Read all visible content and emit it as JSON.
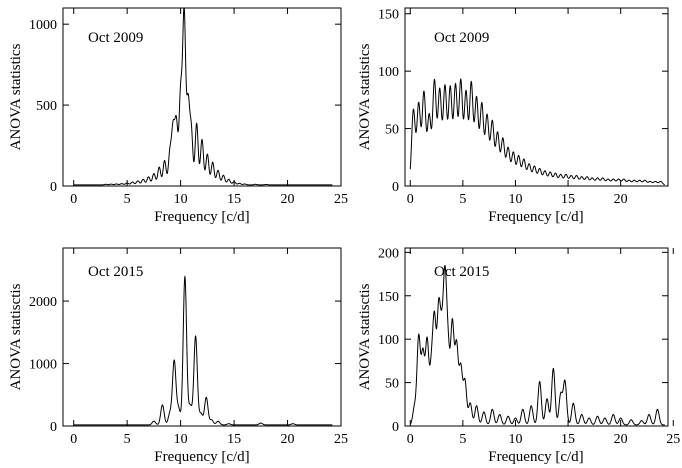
{
  "chart_data": [
    {
      "type": "line",
      "panel_label": "Oct 2009",
      "xlabel": "Frequency [c/d]",
      "ylabel": "ANOVA statistics",
      "xlim": [
        -1,
        25
      ],
      "ylim": [
        0,
        1100
      ],
      "x_ticks": [
        0,
        5,
        10,
        15,
        20,
        25
      ],
      "y_ticks": [
        0,
        500,
        1000
      ],
      "peaks": [
        [
          3,
          4
        ],
        [
          3.5,
          5
        ],
        [
          4,
          6
        ],
        [
          4.5,
          8
        ],
        [
          5,
          12
        ],
        [
          5.5,
          18
        ],
        [
          6,
          25
        ],
        [
          6.5,
          35
        ],
        [
          7,
          50
        ],
        [
          7.5,
          70
        ],
        [
          8,
          110
        ],
        [
          8.5,
          150
        ],
        [
          9,
          200
        ],
        [
          9.3,
          340
        ],
        [
          9.6,
          380
        ],
        [
          10,
          560
        ],
        [
          10.33,
          1050
        ],
        [
          10.7,
          500
        ],
        [
          11,
          330
        ],
        [
          11.5,
          380
        ],
        [
          12,
          280
        ],
        [
          12.5,
          190
        ],
        [
          13,
          140
        ],
        [
          13.5,
          90
        ],
        [
          14,
          60
        ],
        [
          14.5,
          35
        ],
        [
          15,
          20
        ],
        [
          15.5,
          10
        ],
        [
          16,
          6
        ],
        [
          17,
          4
        ],
        [
          18,
          3
        ]
      ]
    },
    {
      "type": "line",
      "panel_label": "Oct 2009",
      "xlabel": "Frequency [c/d]",
      "ylabel": "ANOVA statistics",
      "xlim": [
        -0.5,
        24.5
      ],
      "ylim": [
        0,
        155
      ],
      "x_ticks": [
        0,
        5,
        10,
        15,
        20
      ],
      "y_ticks": [
        0,
        50,
        100,
        150
      ],
      "peaks": [
        [
          0.3,
          65
        ],
        [
          0.8,
          70
        ],
        [
          1.3,
          80
        ],
        [
          1.8,
          60
        ],
        [
          2.3,
          90
        ],
        [
          2.8,
          82
        ],
        [
          3.3,
          85
        ],
        [
          3.8,
          84
        ],
        [
          4.3,
          86
        ],
        [
          4.8,
          90
        ],
        [
          5.3,
          80
        ],
        [
          5.8,
          88
        ],
        [
          6.3,
          75
        ],
        [
          6.8,
          70
        ],
        [
          7.3,
          60
        ],
        [
          7.8,
          55
        ],
        [
          8.3,
          45
        ],
        [
          8.8,
          40
        ],
        [
          9.3,
          32
        ],
        [
          9.8,
          28
        ],
        [
          10.3,
          25
        ],
        [
          10.8,
          22
        ],
        [
          11.3,
          18
        ],
        [
          11.8,
          16
        ],
        [
          12.3,
          14
        ],
        [
          12.8,
          12
        ],
        [
          13.3,
          11
        ],
        [
          13.8,
          10
        ],
        [
          14.3,
          9
        ],
        [
          14.8,
          9
        ],
        [
          15.3,
          8
        ],
        [
          15.8,
          8
        ],
        [
          16.3,
          7
        ],
        [
          16.8,
          7
        ],
        [
          17.3,
          6
        ],
        [
          17.8,
          6
        ],
        [
          18.3,
          6
        ],
        [
          18.8,
          5
        ],
        [
          19.3,
          5
        ],
        [
          19.8,
          5
        ],
        [
          20.3,
          5
        ],
        [
          20.8,
          4
        ],
        [
          21.3,
          4
        ],
        [
          21.8,
          4
        ],
        [
          22.3,
          4
        ],
        [
          22.8,
          3
        ],
        [
          23.3,
          3
        ],
        [
          23.8,
          3
        ]
      ]
    },
    {
      "type": "line",
      "panel_label": "Oct 2015",
      "xlabel": "Frequency [c/d]",
      "ylabel": "ANOVA statisctis",
      "xlim": [
        -1,
        25
      ],
      "ylim": [
        0,
        2850
      ],
      "x_ticks": [
        0,
        5,
        10,
        15,
        20,
        25
      ],
      "y_ticks": [
        0,
        1000,
        2000
      ],
      "peaks": [
        [
          7.5,
          60
        ],
        [
          8.3,
          320
        ],
        [
          9,
          180
        ],
        [
          9.4,
          1020
        ],
        [
          9.8,
          260
        ],
        [
          10.4,
          2370
        ],
        [
          10.9,
          300
        ],
        [
          11.4,
          1420
        ],
        [
          11.9,
          180
        ],
        [
          12.4,
          440
        ],
        [
          12.9,
          80
        ],
        [
          13.5,
          60
        ],
        [
          14.5,
          20
        ],
        [
          17.5,
          30
        ],
        [
          20.5,
          20
        ]
      ]
    },
    {
      "type": "line",
      "panel_label": "Oct 2015",
      "xlabel": "Frequency [c/d]",
      "ylabel": "ANOVA statisctis",
      "xlim": [
        -0.5,
        24.5
      ],
      "ylim": [
        0,
        205
      ],
      "x_ticks": [
        0,
        5,
        10,
        15,
        20,
        25
      ],
      "y_ticks": [
        0,
        50,
        100,
        150,
        200
      ],
      "peaks": [
        [
          0.4,
          20
        ],
        [
          0.8,
          100
        ],
        [
          1.2,
          80
        ],
        [
          1.6,
          95
        ],
        [
          2,
          60
        ],
        [
          2.3,
          115
        ],
        [
          2.7,
          125
        ],
        [
          3,
          85
        ],
        [
          3.3,
          155
        ],
        [
          3.6,
          80
        ],
        [
          4,
          115
        ],
        [
          4.4,
          90
        ],
        [
          4.8,
          65
        ],
        [
          5.2,
          50
        ],
        [
          5.7,
          25
        ],
        [
          6.3,
          22
        ],
        [
          7,
          15
        ],
        [
          7.8,
          18
        ],
        [
          8.5,
          12
        ],
        [
          9.3,
          10
        ],
        [
          10,
          8
        ],
        [
          10.7,
          18
        ],
        [
          11.5,
          22
        ],
        [
          12.3,
          50
        ],
        [
          13,
          30
        ],
        [
          13.6,
          65
        ],
        [
          14.3,
          35
        ],
        [
          14.7,
          50
        ],
        [
          15.5,
          25
        ],
        [
          16.3,
          12
        ],
        [
          17,
          8
        ],
        [
          17.8,
          10
        ],
        [
          18.5,
          8
        ],
        [
          19.3,
          12
        ],
        [
          20,
          8
        ],
        [
          21,
          6
        ],
        [
          22,
          5
        ],
        [
          22.7,
          12
        ],
        [
          23.5,
          18
        ]
      ]
    }
  ]
}
